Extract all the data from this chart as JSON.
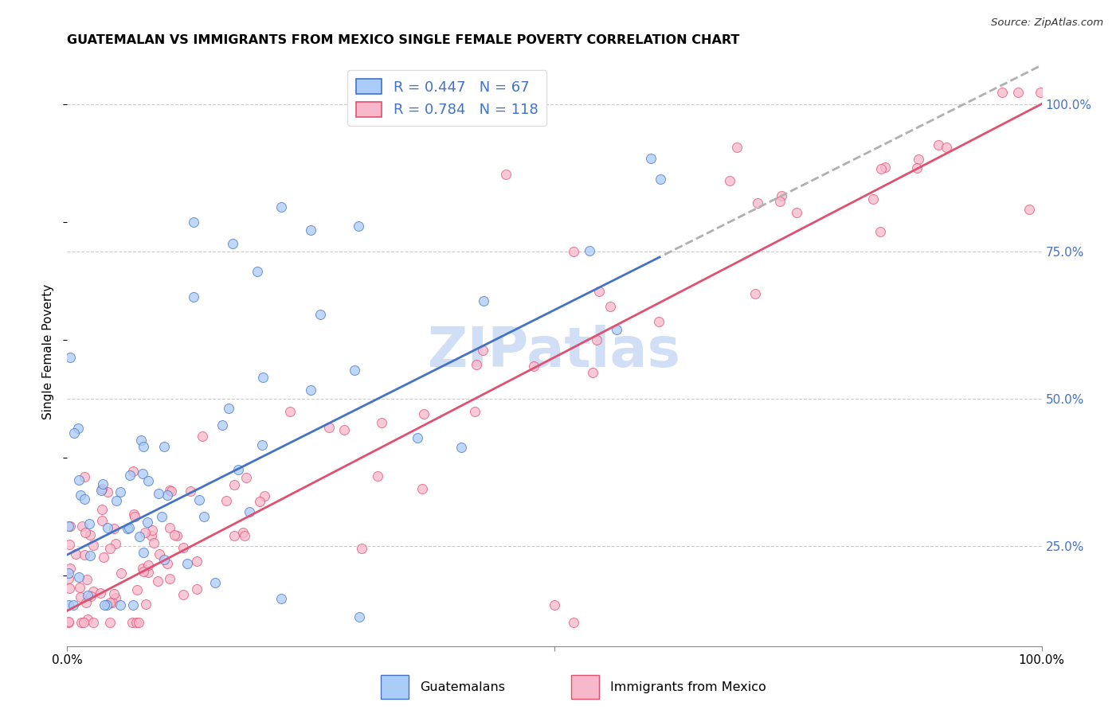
{
  "title": "GUATEMALAN VS IMMIGRANTS FROM MEXICO SINGLE FEMALE POVERTY CORRELATION CHART",
  "source": "Source: ZipAtlas.com",
  "ylabel": "Single Female Poverty",
  "legend_label1": "Guatemalans",
  "legend_label2": "Immigrants from Mexico",
  "R1": 0.447,
  "N1": 67,
  "R2": 0.784,
  "N2": 118,
  "color1": "#aaccf8",
  "color2": "#f8b8cc",
  "line_color1": "#4472c4",
  "line_color2": "#e05070",
  "dashed_color": "#b0b0b0",
  "right_axis_color": "#4472c4",
  "watermark_color": "#d0dff5",
  "xlim": [
    0,
    1.0
  ],
  "ylim": [
    0.08,
    1.08
  ],
  "yticks": [
    0.25,
    0.5,
    0.75,
    1.0
  ],
  "ytick_labels": [
    "25.0%",
    "50.0%",
    "75.0%",
    "100.0%"
  ],
  "xtick_positions": [
    0.0,
    0.5,
    1.0
  ],
  "xtick_labels": [
    "0.0%",
    "",
    "100.0%"
  ]
}
